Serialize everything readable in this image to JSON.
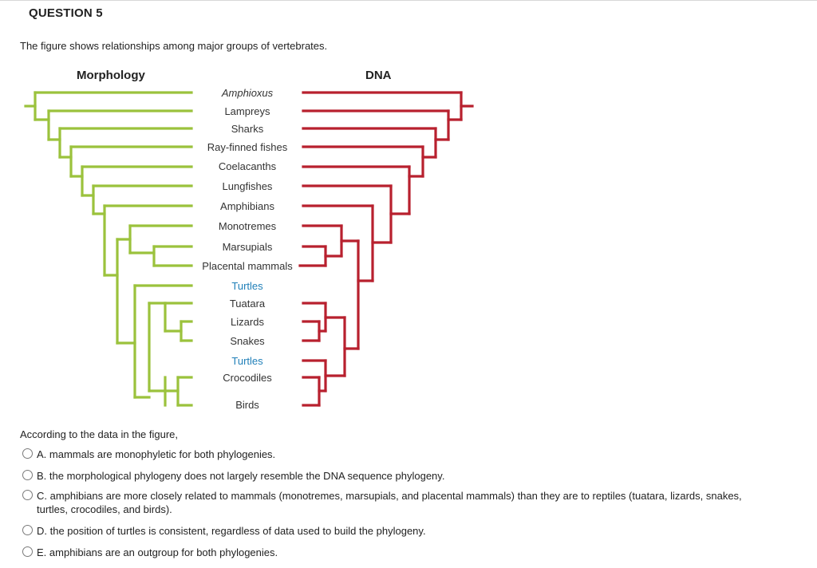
{
  "question": {
    "title": "QUESTION 5",
    "intro": "The figure shows relationships among major groups of vertebrates.",
    "prompt": "According to the data in the figure,"
  },
  "figure": {
    "morphology_label": "Morphology",
    "dna_label": "DNA",
    "colors": {
      "morphology": "#9bc23c",
      "dna": "#b8202e",
      "highlight": "#1f7fb8"
    },
    "taxa": [
      {
        "name": "Amphioxus",
        "italic": true,
        "highlight": false
      },
      {
        "name": "Lampreys",
        "italic": false,
        "highlight": false
      },
      {
        "name": "Sharks",
        "italic": false,
        "highlight": false
      },
      {
        "name": "Ray-finned fishes",
        "italic": false,
        "highlight": false
      },
      {
        "name": "Coelacanths",
        "italic": false,
        "highlight": false
      },
      {
        "name": "Lungfishes",
        "italic": false,
        "highlight": false
      },
      {
        "name": "Amphibians",
        "italic": false,
        "highlight": false
      },
      {
        "name": "Monotremes",
        "italic": false,
        "highlight": false
      },
      {
        "name": "Marsupials",
        "italic": false,
        "highlight": false
      },
      {
        "name": "Placental mammals",
        "italic": false,
        "highlight": false
      },
      {
        "name": "Turtles",
        "italic": false,
        "highlight": true
      },
      {
        "name": "Tuatara",
        "italic": false,
        "highlight": false
      },
      {
        "name": "Lizards",
        "italic": false,
        "highlight": false
      },
      {
        "name": "Snakes",
        "italic": false,
        "highlight": false
      },
      {
        "name": "Turtles",
        "italic": false,
        "highlight": true
      },
      {
        "name": "Crocodiles",
        "italic": false,
        "highlight": false
      },
      {
        "name": "Birds",
        "italic": false,
        "highlight": false
      }
    ]
  },
  "options": [
    {
      "letter": "A.",
      "text": "mammals are monophyletic for both phylogenies."
    },
    {
      "letter": "B.",
      "text": "the morphological phylogeny does not largely resemble the DNA sequence phylogeny."
    },
    {
      "letter": "C.",
      "text": "amphibians are more closely related to mammals (monotremes, marsupials, and placental mammals) than they are to reptiles (tuatara, lizards, snakes, turtles, crocodiles, and birds)."
    },
    {
      "letter": "D.",
      "text": "the position of turtles is consistent, regardless of data used to build the phylogeny."
    },
    {
      "letter": "E.",
      "text": "amphibians are an outgroup for both phylogenies."
    }
  ]
}
